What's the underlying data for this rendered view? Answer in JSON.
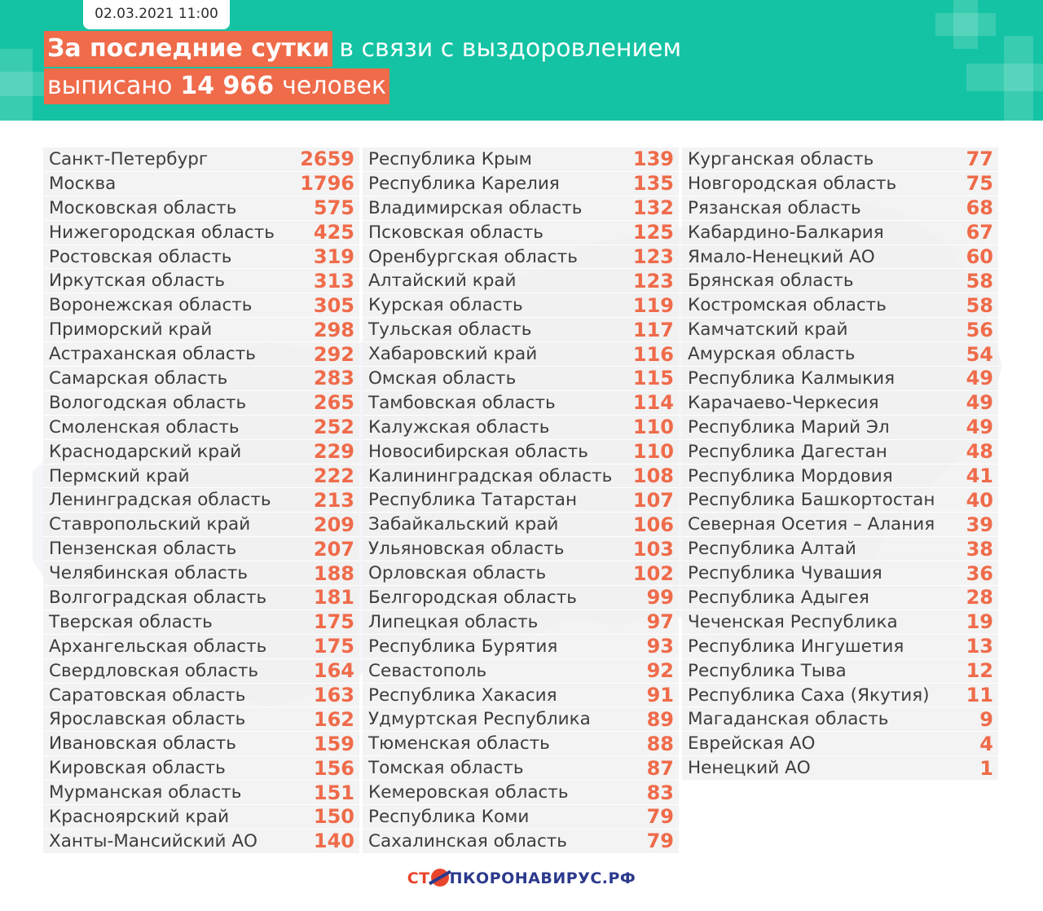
{
  "header": {
    "date": "02.03.2021 11:00",
    "headline_accent": "За последние сутки",
    "headline_rest": "в связи с выздоровлением",
    "line2_prefix": "выписано",
    "line2_number": "14 966",
    "line2_suffix": "человек"
  },
  "colors": {
    "header_bg": "#14c3a3",
    "accent": "#ef6b4a",
    "text": "#3d3d3d"
  },
  "columns": [
    [
      {
        "name": "Санкт-Петербург",
        "value": "2659"
      },
      {
        "name": "Москва",
        "value": "1796"
      },
      {
        "name": "Московская область",
        "value": "575"
      },
      {
        "name": "Нижегородская область",
        "value": "425"
      },
      {
        "name": "Ростовская область",
        "value": "319"
      },
      {
        "name": "Иркутская область",
        "value": "313"
      },
      {
        "name": "Воронежская область",
        "value": "305"
      },
      {
        "name": "Приморский край",
        "value": "298"
      },
      {
        "name": "Астраханская область",
        "value": "292"
      },
      {
        "name": "Самарская область",
        "value": "283"
      },
      {
        "name": "Вологодская область",
        "value": "265"
      },
      {
        "name": "Смоленская область",
        "value": "252"
      },
      {
        "name": "Краснодарский край",
        "value": "229"
      },
      {
        "name": "Пермский край",
        "value": "222"
      },
      {
        "name": "Ленинградская область",
        "value": "213"
      },
      {
        "name": "Ставропольский край",
        "value": "209"
      },
      {
        "name": "Пензенская область",
        "value": "207"
      },
      {
        "name": "Челябинская область",
        "value": "188"
      },
      {
        "name": "Волгоградская область",
        "value": "181"
      },
      {
        "name": "Тверская область",
        "value": "175"
      },
      {
        "name": "Архангельская область",
        "value": "175"
      },
      {
        "name": "Свердловская область",
        "value": "164"
      },
      {
        "name": "Саратовская область",
        "value": "163"
      },
      {
        "name": "Ярославская область",
        "value": "162"
      },
      {
        "name": "Ивановская область",
        "value": "159"
      },
      {
        "name": "Кировская область",
        "value": "156"
      },
      {
        "name": "Мурманская область",
        "value": "151"
      },
      {
        "name": "Красноярский край",
        "value": "150"
      },
      {
        "name": "Ханты-Мансийский АО",
        "value": "140"
      }
    ],
    [
      {
        "name": "Республика Крым",
        "value": "139"
      },
      {
        "name": "Республика Карелия",
        "value": "135"
      },
      {
        "name": "Владимирская область",
        "value": "132"
      },
      {
        "name": "Псковская область",
        "value": "125"
      },
      {
        "name": "Оренбургская область",
        "value": "123"
      },
      {
        "name": "Алтайский край",
        "value": "123"
      },
      {
        "name": "Курская область",
        "value": "119"
      },
      {
        "name": "Тульская область",
        "value": "117"
      },
      {
        "name": "Хабаровский край",
        "value": "116"
      },
      {
        "name": "Омская область",
        "value": "115"
      },
      {
        "name": "Тамбовская область",
        "value": "114"
      },
      {
        "name": "Калужская область",
        "value": "110"
      },
      {
        "name": "Новосибирская область",
        "value": "110"
      },
      {
        "name": "Калининградская область",
        "value": "108"
      },
      {
        "name": "Республика Татарстан",
        "value": "107"
      },
      {
        "name": "Забайкальский край",
        "value": "106"
      },
      {
        "name": "Ульяновская область",
        "value": "103"
      },
      {
        "name": "Орловская область",
        "value": "102"
      },
      {
        "name": "Белгородская область",
        "value": "99"
      },
      {
        "name": "Липецкая область",
        "value": "97"
      },
      {
        "name": "Республика Бурятия",
        "value": "93"
      },
      {
        "name": "Севастополь",
        "value": "92"
      },
      {
        "name": "Республика Хакасия",
        "value": "91"
      },
      {
        "name": "Удмуртская Республика",
        "value": "89"
      },
      {
        "name": "Тюменская область",
        "value": "88"
      },
      {
        "name": "Томская область",
        "value": "87"
      },
      {
        "name": "Кемеровская область",
        "value": "83"
      },
      {
        "name": "Республика Коми",
        "value": "79"
      },
      {
        "name": "Сахалинская область",
        "value": "79"
      }
    ],
    [
      {
        "name": "Курганская область",
        "value": "77"
      },
      {
        "name": "Новгородская область",
        "value": "75"
      },
      {
        "name": "Рязанская область",
        "value": "68"
      },
      {
        "name": "Кабардино-Балкария",
        "value": "67"
      },
      {
        "name": "Ямало-Ненецкий АО",
        "value": "60"
      },
      {
        "name": "Брянская область",
        "value": "58"
      },
      {
        "name": "Костромская область",
        "value": "58"
      },
      {
        "name": "Камчатский край",
        "value": "56"
      },
      {
        "name": "Амурская область",
        "value": "54"
      },
      {
        "name": "Республика Калмыкия",
        "value": "49"
      },
      {
        "name": "Карачаево-Черкесия",
        "value": "49"
      },
      {
        "name": "Республика Марий Эл",
        "value": "49"
      },
      {
        "name": "Республика Дагестан",
        "value": "48"
      },
      {
        "name": "Республика Мордовия",
        "value": "41"
      },
      {
        "name": "Республика Башкортостан",
        "value": "40"
      },
      {
        "name": "Северная Осетия – Алания",
        "value": "39"
      },
      {
        "name": "Республика Алтай",
        "value": "38"
      },
      {
        "name": "Республика Чувашия",
        "value": "36"
      },
      {
        "name": "Республика Адыгея",
        "value": "28"
      },
      {
        "name": "Чеченская Республика",
        "value": "19"
      },
      {
        "name": "Республика Ингушетия",
        "value": "13"
      },
      {
        "name": "Республика Тыва",
        "value": "12"
      },
      {
        "name": "Республика Саха (Якутия)",
        "value": "11"
      },
      {
        "name": "Магаданская область",
        "value": "9"
      },
      {
        "name": "Еврейская АО",
        "value": "4"
      },
      {
        "name": "Ненецкий АО",
        "value": "1"
      }
    ]
  ],
  "footer": {
    "logo_part1": "СТ",
    "logo_part2": "ПКОРОНАВИРУС.РФ",
    "logo_icon": "virus-icon"
  }
}
